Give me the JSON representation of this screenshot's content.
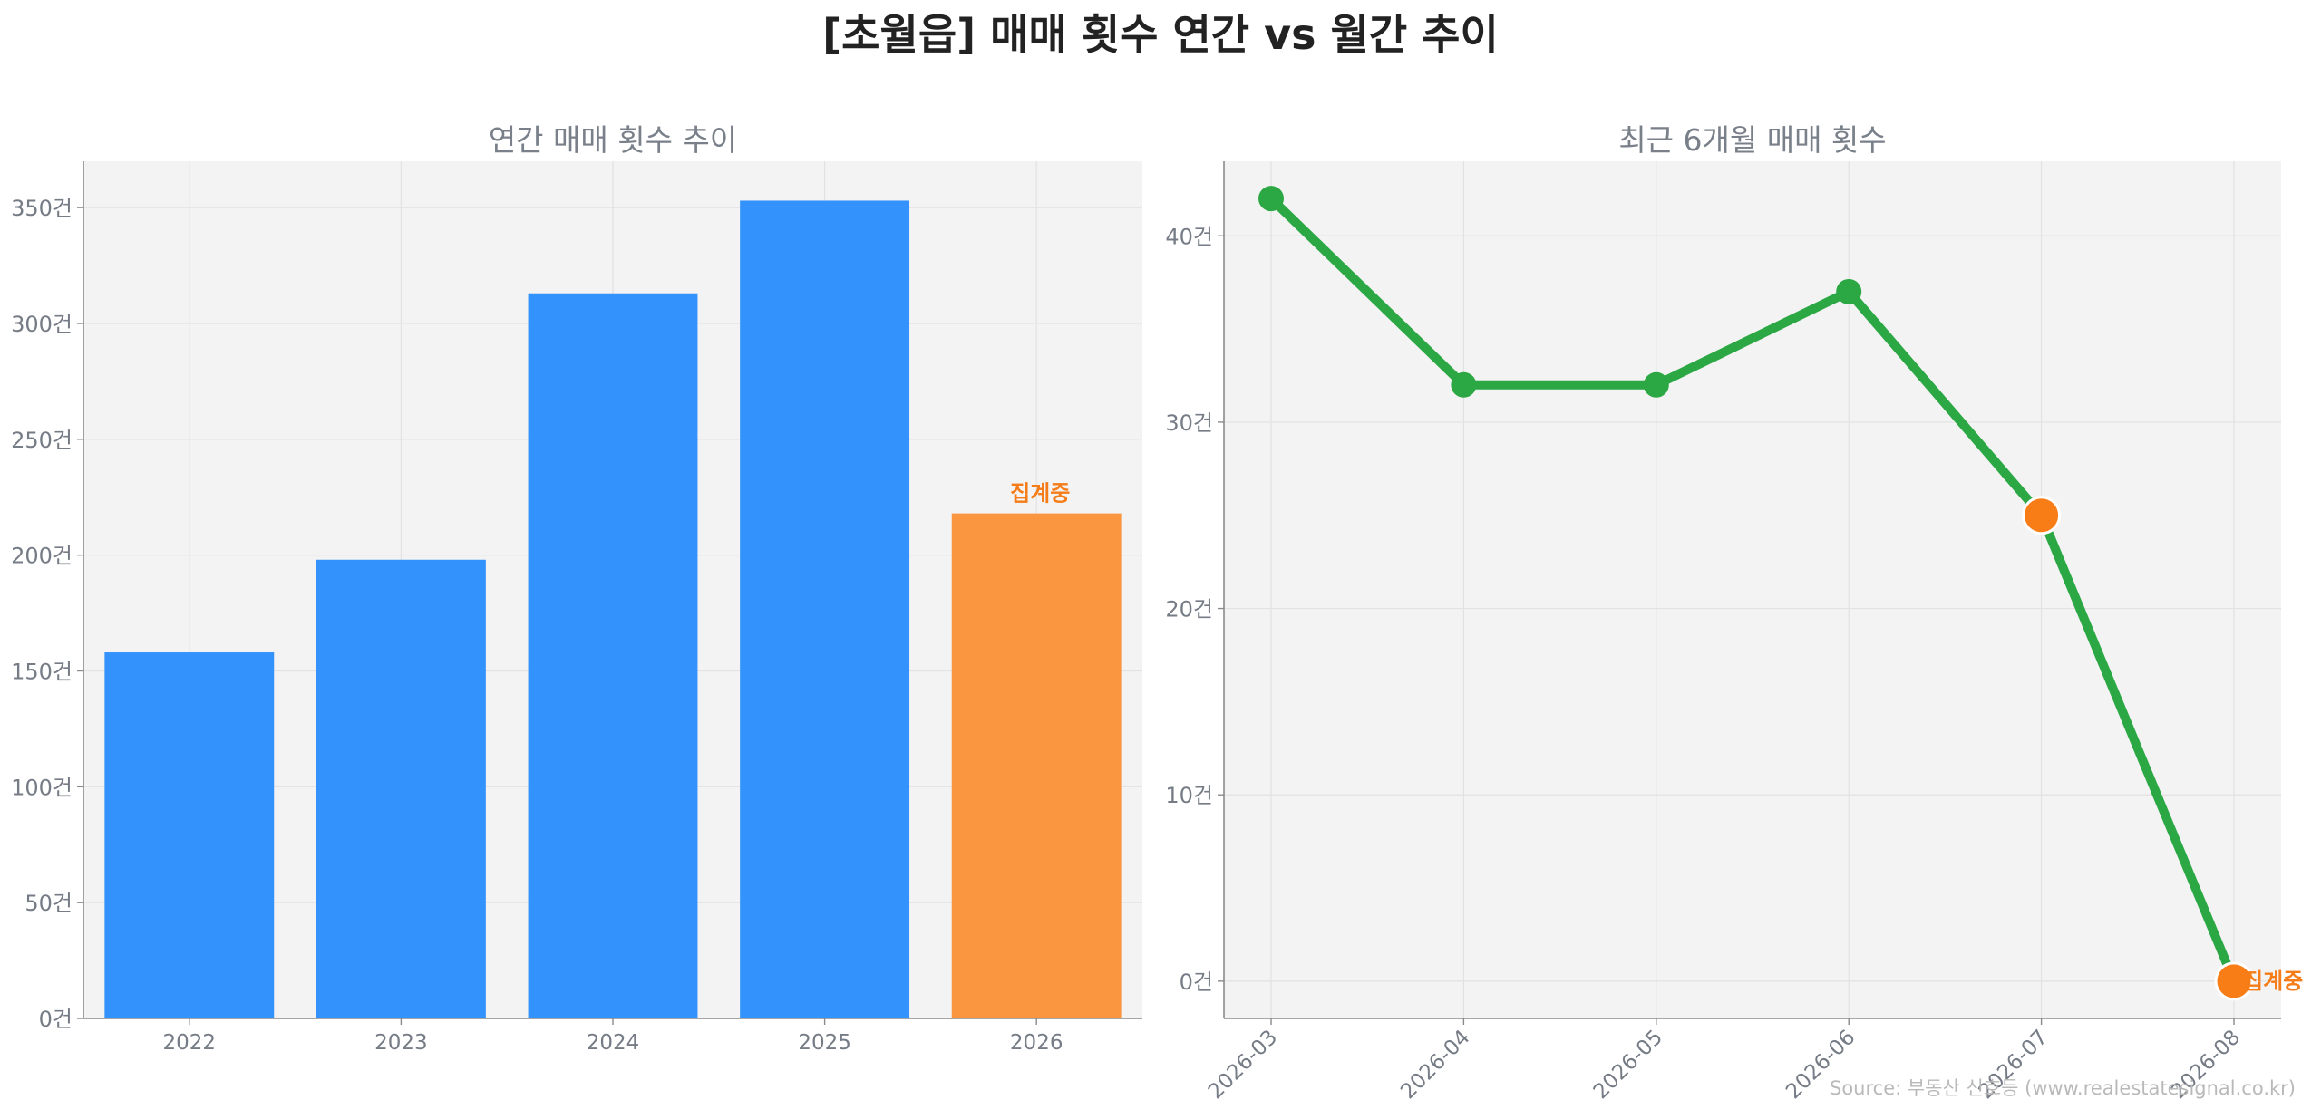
{
  "title": "[초월읍] 매매 횟수 연간 vs 월간 추이",
  "source": "Source: 부동산 신호등 (www.realestatesignal.co.kr)",
  "colors": {
    "bar": "#3392fb",
    "highlight": "#f9963f",
    "line": "#2ba844",
    "marker_orange": "#f87d17",
    "annotation": "#f57c17",
    "axis_text": "#767c86",
    "plot_bg": "#f3f3f3",
    "grid": "#e2e2e2"
  },
  "chart_data": [
    {
      "type": "bar",
      "title": "연간 매매 횟수 추이",
      "xlabel": "",
      "ylabel": "",
      "categories": [
        "2022",
        "2023",
        "2024",
        "2025",
        "2026"
      ],
      "values": [
        158,
        198,
        313,
        353,
        218
      ],
      "highlight_index": 4,
      "annotation": "집계중",
      "ylim": [
        0,
        370
      ],
      "yticks": [
        0,
        50,
        100,
        150,
        200,
        250,
        300,
        350
      ],
      "ytick_labels": [
        "0건",
        "50건",
        "100건",
        "150건",
        "200건",
        "250건",
        "300건",
        "350건"
      ],
      "grid": true
    },
    {
      "type": "line",
      "title": "최근 6개월 매매 횟수",
      "xlabel": "",
      "ylabel": "",
      "x": [
        "2026-03",
        "2026-04",
        "2026-05",
        "2026-06",
        "2026-07",
        "2026-08"
      ],
      "values": [
        42,
        32,
        32,
        37,
        25,
        0
      ],
      "highlight_indices": [
        4,
        5
      ],
      "annotation": "집계중",
      "ylim": [
        -2,
        44
      ],
      "yticks": [
        0,
        10,
        20,
        30,
        40
      ],
      "ytick_labels": [
        "0건",
        "10건",
        "20건",
        "30건",
        "40건"
      ],
      "grid": true
    }
  ]
}
